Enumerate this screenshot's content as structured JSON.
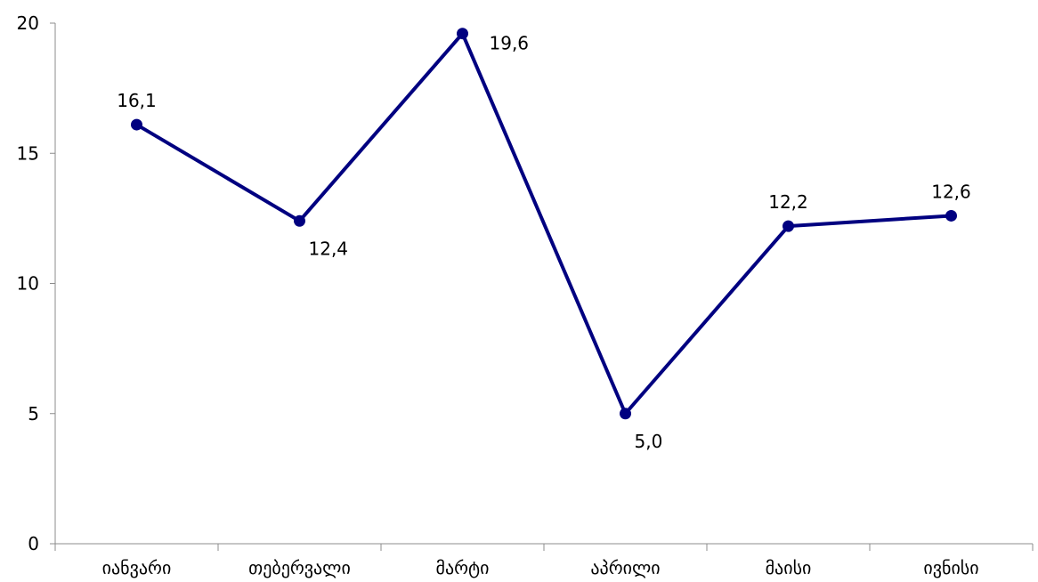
{
  "chart_data": {
    "type": "line",
    "categories": [
      "იანვარი",
      "თებერვალი",
      "მარტი",
      "აპრილი",
      "მაისი",
      "ივნისი"
    ],
    "values": [
      16.1,
      12.4,
      19.6,
      5.0,
      12.2,
      12.6
    ],
    "data_labels": [
      "16,1",
      "12,4",
      "19,6",
      "5,0",
      "12,2",
      "12,6"
    ],
    "yticks": [
      0,
      5,
      10,
      15,
      20
    ],
    "ylim": [
      0,
      20
    ],
    "title": "",
    "xlabel": "",
    "ylabel": "",
    "grid": false,
    "legend": "none",
    "line_color": "#000080"
  }
}
